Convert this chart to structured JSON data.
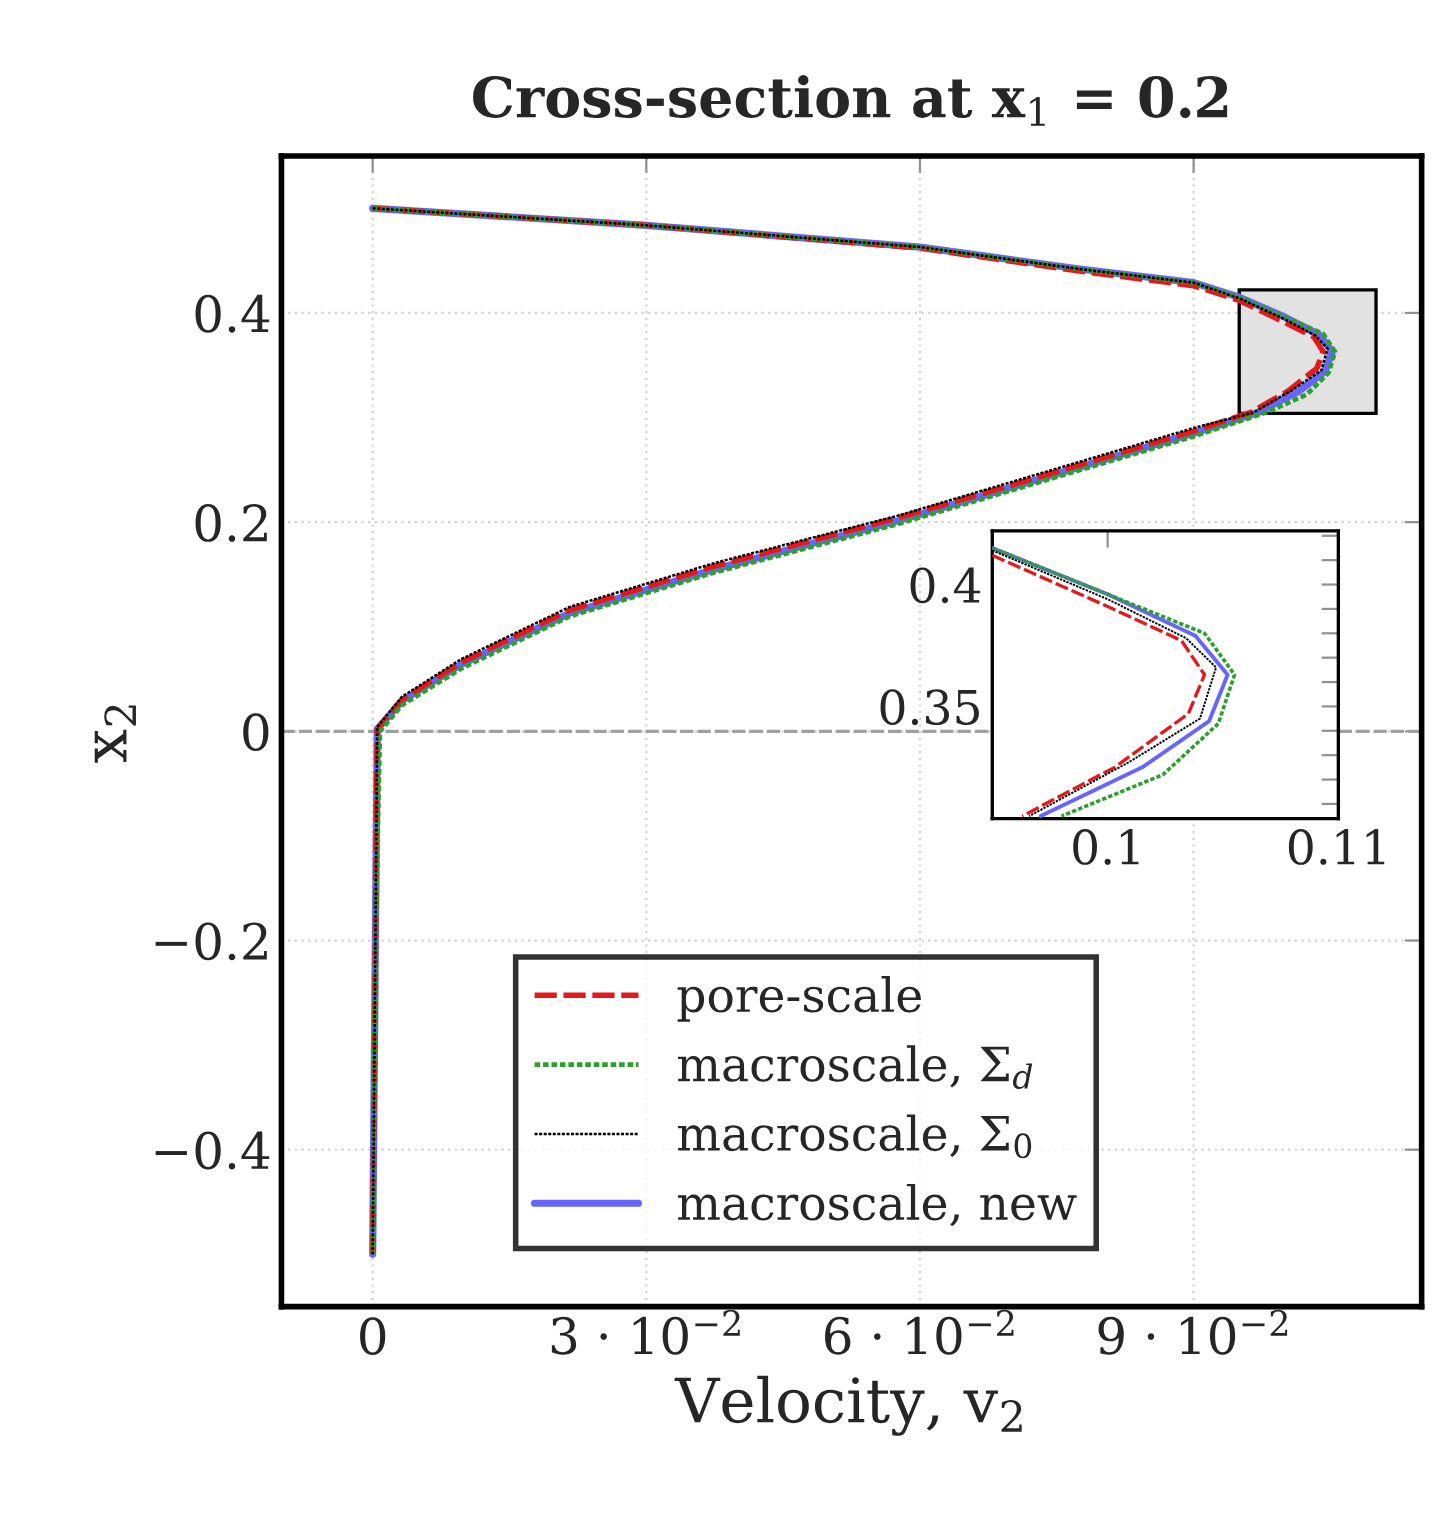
{
  "chart_data": [
    {
      "type": "line",
      "title": "Cross-section at x$_{1}$ = 0.2",
      "xlabel": "Velocity, v$_{2}$",
      "ylabel": "x$_{2}$",
      "xlim": [
        -0.01,
        0.115
      ],
      "ylim": [
        -0.55,
        0.55
      ],
      "xticks": [
        0,
        {
          "value": 0.03,
          "label": "3 · 10$^{−2}$"
        },
        {
          "value": 0.06,
          "label": "6 · 10$^{−2}$"
        },
        {
          "value": 0.09,
          "label": "9 · 10$^{−2}$"
        }
      ],
      "yticks": [
        {
          "value": -0.4,
          "label": "−0.4"
        },
        {
          "value": -0.2,
          "label": "−0.2"
        },
        0,
        0.2,
        0.4
      ],
      "grid": true,
      "legend": "bottom",
      "ref_lines": [
        {
          "axis": "y",
          "value": 0,
          "color": "#a0a0a0",
          "line_style": "dashed"
        }
      ],
      "series": [
        {
          "name": "pore-scale",
          "color": "#e31a1c",
          "line_style": "dashed",
          "x": [
            0,
            0.0296,
            0.06,
            0.0775,
            0.09,
            0.095,
            0.1,
            0.1032,
            0.1042,
            0.1035,
            0.1003,
            0.0963,
            0.09,
            0.0695,
            0.0575,
            0.0375,
            0.0216,
            0.0097,
            0.0032,
            0.0005,
            0.0003,
            0
          ],
          "values": [
            0.5,
            0.484,
            0.462,
            0.44,
            0.426,
            0.412,
            0.391,
            0.377,
            0.363,
            0.347,
            0.325,
            0.305,
            0.287,
            0.234,
            0.204,
            0.158,
            0.116,
            0.066,
            0.03,
            0.002,
            -0.2,
            -0.5
          ]
        },
        {
          "name": "macroscale, Σ$_{d}$",
          "color": "#2ca02c",
          "line_style": "dotted",
          "x": [
            0,
            0.0296,
            0.06,
            0.0775,
            0.09,
            0.095,
            0.1,
            0.1042,
            0.1055,
            0.1048,
            0.1024,
            0.098,
            0.09,
            0.0695,
            0.0575,
            0.0375,
            0.0216,
            0.0097,
            0.0032,
            0.0008,
            0.0003,
            0
          ],
          "values": [
            0.5,
            0.484,
            0.463,
            0.442,
            0.429,
            0.415,
            0.396,
            0.38,
            0.363,
            0.343,
            0.322,
            0.305,
            0.282,
            0.229,
            0.198,
            0.152,
            0.11,
            0.06,
            0.025,
            0.0,
            -0.2,
            -0.5
          ]
        },
        {
          "name": "macroscale, Σ$_{0}$",
          "color": "#000000",
          "line_style": "dotted",
          "x": [
            0,
            0.0296,
            0.06,
            0.0775,
            0.09,
            0.095,
            0.1,
            0.1034,
            0.1047,
            0.104,
            0.1009,
            0.0966,
            0.09,
            0.0695,
            0.0575,
            0.0375,
            0.0216,
            0.0097,
            0.0032,
            0.0005,
            0.0003,
            0
          ],
          "values": [
            0.5,
            0.484,
            0.463,
            0.442,
            0.429,
            0.414,
            0.394,
            0.378,
            0.366,
            0.345,
            0.327,
            0.305,
            0.29,
            0.237,
            0.206,
            0.161,
            0.119,
            0.069,
            0.033,
            0.004,
            -0.2,
            -0.5
          ]
        },
        {
          "name": "macroscale, new",
          "color": "#6666ff",
          "line_style": "solid",
          "x": [
            0,
            0.0296,
            0.06,
            0.0775,
            0.09,
            0.095,
            0.1,
            0.1038,
            0.1052,
            0.1044,
            0.1015,
            0.0971,
            0.09,
            0.0695,
            0.0575,
            0.0375,
            0.0216,
            0.0097,
            0.0032,
            0.0005,
            0.0003,
            0
          ],
          "values": [
            0.5,
            0.484,
            0.463,
            0.442,
            0.429,
            0.415,
            0.396,
            0.379,
            0.363,
            0.344,
            0.325,
            0.305,
            0.285,
            0.232,
            0.201,
            0.155,
            0.113,
            0.064,
            0.029,
            0.002,
            -0.2,
            -0.5
          ]
        }
      ]
    },
    {
      "type": "line",
      "xlim": [
        0.095,
        0.11
      ],
      "ylim": [
        0.304,
        0.422
      ],
      "xticks": [
        0.1,
        0.11
      ],
      "yticks": [
        {
          "value": 0.31,
          "label": null
        },
        {
          "value": 0.32,
          "label": null
        },
        {
          "value": 0.33,
          "label": null
        },
        {
          "value": 0.34,
          "label": null
        },
        0.35,
        {
          "value": 0.36,
          "label": null
        },
        {
          "value": 0.37,
          "label": null
        },
        {
          "value": 0.38,
          "label": null
        },
        {
          "value": 0.39,
          "label": null
        },
        0.4,
        {
          "value": 0.41,
          "label": null
        },
        {
          "value": 0.42,
          "label": null
        }
      ],
      "series": [
        {
          "color": "#e31a1c",
          "line_style": "dashed",
          "x": [
            0.095,
            0.1,
            0.1032,
            0.1042,
            0.1035,
            0.1003,
            0.0963
          ],
          "values": [
            0.412,
            0.391,
            0.377,
            0.363,
            0.347,
            0.325,
            0.305
          ]
        },
        {
          "color": "#2ca02c",
          "line_style": "dotted",
          "x": [
            0.095,
            0.1,
            0.1042,
            0.1055,
            0.1048,
            0.1024,
            0.098
          ],
          "values": [
            0.415,
            0.396,
            0.38,
            0.363,
            0.343,
            0.322,
            0.305
          ]
        },
        {
          "color": "#000000",
          "line_style": "dotted",
          "x": [
            0.095,
            0.1,
            0.1034,
            0.1047,
            0.104,
            0.1009,
            0.0966
          ],
          "values": [
            0.414,
            0.394,
            0.378,
            0.366,
            0.345,
            0.327,
            0.305
          ]
        },
        {
          "color": "#6666ff",
          "line_style": "solid",
          "x": [
            0.095,
            0.1,
            0.1038,
            0.1052,
            0.1044,
            0.1015,
            0.0971
          ],
          "values": [
            0.415,
            0.396,
            0.379,
            0.363,
            0.344,
            0.325,
            0.305
          ]
        }
      ]
    }
  ]
}
